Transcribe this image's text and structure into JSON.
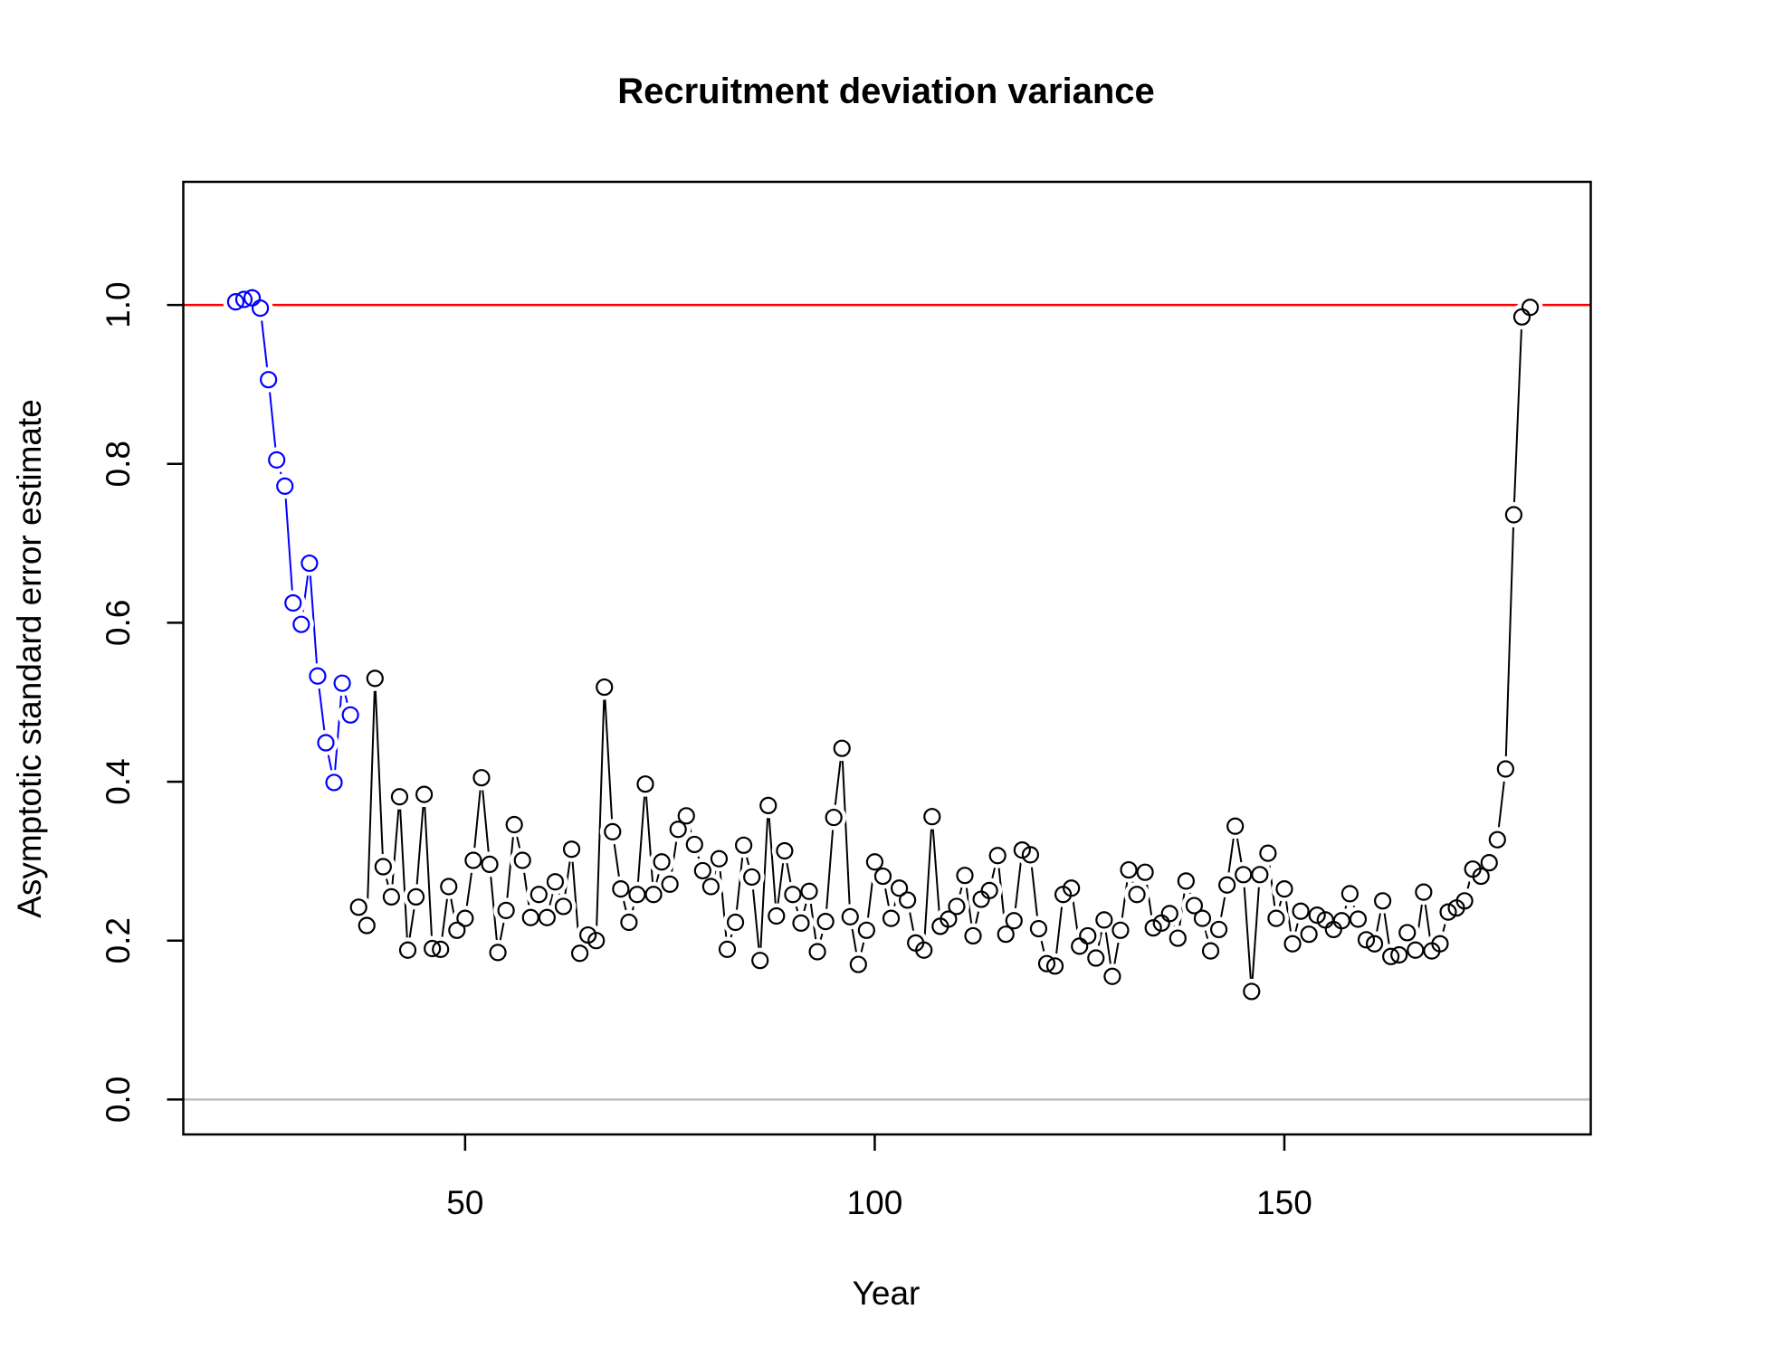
{
  "chart_data": {
    "type": "line",
    "title": "Recruitment deviation variance",
    "x_label": "Year",
    "y_label": "Asymptotic standard error estimate",
    "x": [
      22,
      23,
      24,
      25,
      26,
      27,
      28,
      29,
      30,
      31,
      32,
      33,
      34,
      35,
      36,
      37,
      38,
      39,
      40,
      41,
      42,
      43,
      44,
      45,
      46,
      47,
      48,
      49,
      50,
      51,
      52,
      53,
      54,
      55,
      56,
      57,
      58,
      59,
      60,
      61,
      62,
      63,
      64,
      65,
      66,
      67,
      68,
      69,
      70,
      71,
      72,
      73,
      74,
      75,
      76,
      77,
      78,
      79,
      80,
      81,
      82,
      83,
      84,
      85,
      86,
      87,
      88,
      89,
      90,
      91,
      92,
      93,
      94,
      95,
      96,
      97,
      98,
      99,
      100,
      101,
      102,
      103,
      104,
      105,
      106,
      107,
      108,
      109,
      110,
      111,
      112,
      113,
      114,
      115,
      116,
      117,
      118,
      119,
      120,
      121,
      122,
      123,
      124,
      125,
      126,
      127,
      128,
      129,
      130,
      131,
      132,
      133,
      134,
      135,
      136,
      137,
      138,
      139,
      140,
      141,
      142,
      143,
      144,
      145,
      146,
      147,
      148,
      149,
      150,
      151,
      152,
      153,
      154,
      155,
      156,
      157,
      158,
      159,
      160,
      161,
      162,
      163,
      164,
      165,
      166,
      167,
      168,
      169,
      170,
      171,
      172,
      173,
      174,
      175,
      176,
      177,
      178,
      179,
      180
    ],
    "series": [
      {
        "color": "#0000ff",
        "values": [
          1.004,
          1.007,
          1.009,
          0.996,
          0.906,
          0.805,
          0.772,
          0.625,
          0.598,
          0.675,
          0.533,
          0.449,
          0.399,
          0.524,
          0.484,
          null,
          null,
          null,
          null,
          null,
          null,
          null,
          null,
          null,
          null,
          null,
          null,
          null,
          null,
          null,
          null,
          null,
          null,
          null,
          null,
          null,
          null,
          null,
          null,
          null,
          null,
          null,
          null,
          null,
          null,
          null,
          null,
          null,
          null,
          null,
          null,
          null,
          null,
          null,
          null,
          null,
          null,
          null,
          null,
          null,
          null,
          null,
          null,
          null,
          null,
          null,
          null,
          null,
          null,
          null,
          null,
          null,
          null,
          null,
          null,
          null,
          null,
          null,
          null,
          null,
          null,
          null,
          null,
          null,
          null,
          null,
          null,
          null,
          null,
          null,
          null,
          null,
          null,
          null,
          null,
          null,
          null,
          null,
          null,
          null,
          null,
          null,
          null,
          null,
          null,
          null,
          null,
          null,
          null,
          null,
          null,
          null,
          null,
          null,
          null,
          null,
          null,
          null,
          null,
          null,
          null,
          null,
          null,
          null,
          null,
          null,
          null,
          null,
          null,
          null,
          null,
          null,
          null,
          null,
          null,
          null,
          null,
          null,
          null,
          null,
          null,
          null,
          null,
          null,
          null,
          null,
          null,
          null,
          null,
          null,
          null,
          null,
          null,
          null,
          null,
          null,
          null,
          null,
          null
        ]
      },
      {
        "color": "#000000",
        "values": [
          null,
          null,
          null,
          null,
          null,
          null,
          null,
          null,
          null,
          null,
          null,
          null,
          null,
          null,
          null,
          0.242,
          0.219,
          0.53,
          0.293,
          0.255,
          0.381,
          0.188,
          0.255,
          0.384,
          0.19,
          0.189,
          0.268,
          0.213,
          0.228,
          0.301,
          0.405,
          0.296,
          0.185,
          0.238,
          0.346,
          0.301,
          0.229,
          0.258,
          0.229,
          0.274,
          0.243,
          0.315,
          0.184,
          0.207,
          0.2,
          0.519,
          0.337,
          0.265,
          0.223,
          0.258,
          0.397,
          0.258,
          0.299,
          0.271,
          0.34,
          0.357,
          0.321,
          0.288,
          0.268,
          0.303,
          0.189,
          0.223,
          0.32,
          0.28,
          0.175,
          0.37,
          0.231,
          0.313,
          0.258,
          0.222,
          0.262,
          0.186,
          0.224,
          0.355,
          0.442,
          0.23,
          0.17,
          0.213,
          0.299,
          0.281,
          0.228,
          0.266,
          0.251,
          0.197,
          0.188,
          0.356,
          0.218,
          0.227,
          0.243,
          0.282,
          0.206,
          0.252,
          0.263,
          0.307,
          0.208,
          0.225,
          0.314,
          0.308,
          0.215,
          0.171,
          0.168,
          0.258,
          0.266,
          0.193,
          0.206,
          0.178,
          0.226,
          0.155,
          0.213,
          0.289,
          0.258,
          0.286,
          0.216,
          0.222,
          0.234,
          0.203,
          0.275,
          0.244,
          0.228,
          0.187,
          0.214,
          0.27,
          0.344,
          0.283,
          0.136,
          0.283,
          0.31,
          0.228,
          0.265,
          0.196,
          0.237,
          0.208,
          0.232,
          0.226,
          0.214,
          0.225,
          0.259,
          0.227,
          0.201,
          0.196,
          0.25,
          0.18,
          0.182,
          0.21,
          0.188,
          0.261,
          0.187,
          0.196,
          0.236,
          0.241,
          0.25,
          0.29,
          0.281,
          0.298,
          0.327,
          0.416,
          0.736,
          0.985,
          0.997
        ]
      }
    ],
    "hlines": [
      {
        "y": 1,
        "color": "#ff0000"
      },
      {
        "y": 0,
        "color": "#bebebe"
      }
    ],
    "xlim": [
      15.6,
      187.4
    ],
    "ylim": [
      -0.044,
      1.155
    ],
    "xticks": [
      50,
      100,
      150
    ],
    "yticks": [
      {
        "value": 0,
        "label": "0.0"
      },
      0.2,
      0.4,
      0.6,
      0.8,
      {
        "value": 1,
        "label": "1.0"
      }
    ]
  }
}
